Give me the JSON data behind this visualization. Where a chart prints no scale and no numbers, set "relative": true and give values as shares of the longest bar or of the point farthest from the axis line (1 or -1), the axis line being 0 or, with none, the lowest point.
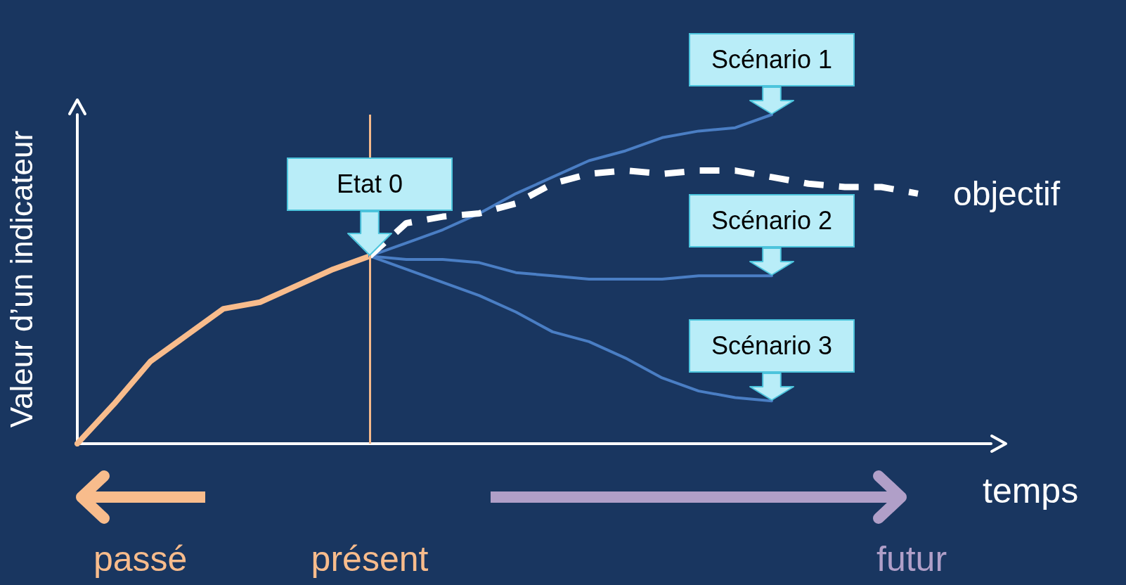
{
  "chart_data": {
    "type": "line",
    "relative": true,
    "xlabel": "temps",
    "ylabel": "Valeur d’un indicateur",
    "categories": [
      null,
      null,
      null,
      null,
      null,
      null,
      null,
      null,
      null,
      null,
      null,
      null,
      null,
      null,
      null,
      null,
      null,
      null,
      null,
      null,
      null,
      null,
      null,
      null,
      null,
      null
    ],
    "series": [
      {
        "color": "#f8bc8c",
        "values": [
          0,
          0.12,
          0.25,
          0.33,
          0.41,
          0.43,
          0.48,
          0.53,
          0.57,
          null,
          null,
          null,
          null,
          null,
          null,
          null,
          null,
          null,
          null,
          null,
          null,
          null,
          null,
          null,
          null,
          null
        ]
      },
      {
        "color": "#4a7ec4",
        "values": [
          null,
          null,
          null,
          null,
          null,
          null,
          null,
          null,
          0.57,
          0.61,
          0.65,
          0.7,
          0.76,
          0.81,
          0.86,
          0.89,
          0.93,
          0.95,
          0.96,
          1,
          null,
          null,
          null,
          null,
          null,
          null
        ]
      },
      {
        "color": "#4a7ec4",
        "values": [
          null,
          null,
          null,
          null,
          null,
          null,
          null,
          null,
          0.57,
          0.56,
          0.56,
          0.55,
          0.52,
          0.51,
          0.5,
          0.5,
          0.5,
          0.51,
          0.51,
          0.51,
          null,
          null,
          null,
          null,
          null,
          null
        ]
      },
      {
        "color": "#4a7ec4",
        "values": [
          null,
          null,
          null,
          null,
          null,
          null,
          null,
          null,
          0.57,
          0.53,
          0.49,
          0.45,
          0.4,
          0.34,
          0.31,
          0.26,
          0.2,
          0.16,
          0.14,
          0.13,
          null,
          null,
          null,
          null,
          null,
          null
        ]
      },
      {
        "name": "objectif",
        "color": "#ffffff",
        "line_style": "dashed",
        "values": [
          null,
          null,
          null,
          null,
          null,
          null,
          null,
          null,
          0.57,
          0.67,
          0.69,
          0.7,
          0.73,
          0.79,
          0.82,
          0.83,
          0.82,
          0.83,
          0.83,
          0.81,
          0.79,
          0.78,
          0.78,
          0.76,
          null,
          null
        ]
      }
    ],
    "annotations": [
      {
        "text": "Etat 0",
        "y": 0.57
      },
      {
        "text": "Scénario 1",
        "y": 1
      },
      {
        "text": "Scénario 2",
        "y": 0.51
      },
      {
        "text": "Scénario 3",
        "y": 0.13
      },
      "passé",
      "présent",
      "futur"
    ],
    "marker": "none",
    "line_style": "solid"
  }
}
